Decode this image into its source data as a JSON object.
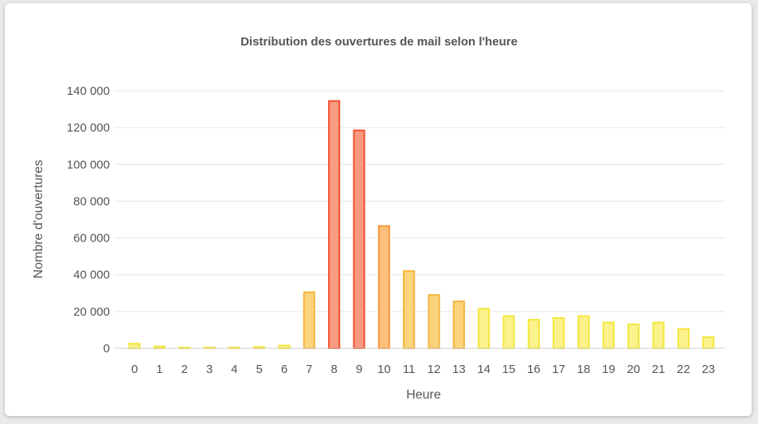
{
  "chart_data": {
    "type": "bar",
    "title": "Distribution des ouvertures de mail selon l'heure",
    "xlabel": "Heure",
    "ylabel": "Nombre d'ouvertures",
    "categories": [
      "0",
      "1",
      "2",
      "3",
      "4",
      "5",
      "6",
      "7",
      "8",
      "9",
      "10",
      "11",
      "12",
      "13",
      "14",
      "15",
      "16",
      "17",
      "18",
      "19",
      "20",
      "21",
      "22",
      "23"
    ],
    "values": [
      2500,
      1000,
      400,
      300,
      300,
      700,
      1500,
      30500,
      134500,
      118500,
      66500,
      42000,
      29000,
      25500,
      21500,
      17500,
      15500,
      16500,
      17500,
      14000,
      13000,
      14000,
      10500,
      6000
    ],
    "ylim": [
      0,
      140000
    ],
    "yticks": [
      0,
      20000,
      40000,
      60000,
      80000,
      100000,
      120000,
      140000
    ],
    "ytick_labels": [
      "0",
      "20 000",
      "40 000",
      "60 000",
      "80 000",
      "100 000",
      "120 000",
      "140 000"
    ],
    "grid": true,
    "legend": "none",
    "colors": {
      "low_fill": "#fbf28c",
      "low_stroke": "#f4e63a",
      "mid_fill": "#fbd47c",
      "mid_stroke": "#f5b53f",
      "orange_fill": "#fdbf7a",
      "orange_stroke": "#f59a3b",
      "high_fill": "#fa9a82",
      "high_stroke": "#f0502d"
    }
  }
}
